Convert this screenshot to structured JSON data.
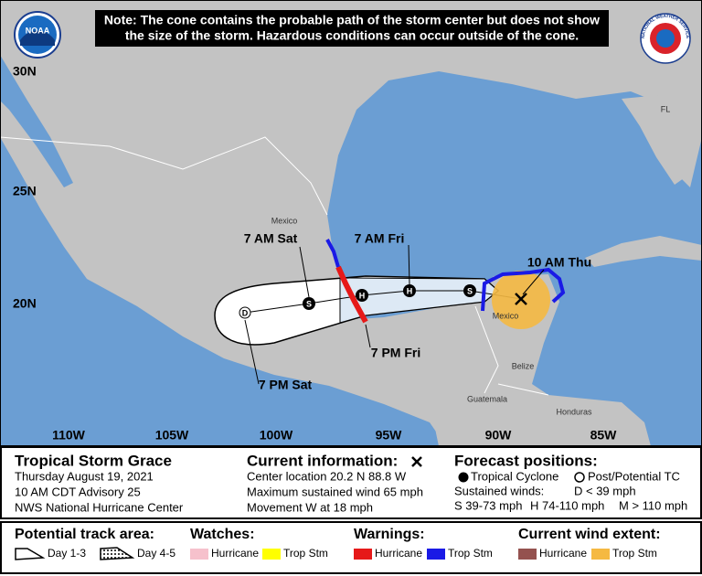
{
  "header": {
    "note": [
      "Note: The cone contains the probable path of the storm center but does not show",
      "the size of the storm. Hazardous conditions can occur outside of the cone."
    ],
    "noaa_logo": "NOAA",
    "nws_logo": "NATIONAL WEATHER SERVICE"
  },
  "map": {
    "latitudes": [
      "30N",
      "25N",
      "20N"
    ],
    "longitudes": [
      "110W",
      "105W",
      "100W",
      "95W",
      "90W",
      "85W"
    ],
    "places": [
      "Mexico",
      "Mexico",
      "FL",
      "Belize",
      "Guatemala",
      "Honduras"
    ],
    "track_labels": [
      "7 AM Sat",
      "7 AM Fri",
      "10 AM Thu",
      "7 PM Fri",
      "7 PM Sat"
    ],
    "markers": [
      "D",
      "S",
      "H",
      "H",
      "S"
    ]
  },
  "storm": {
    "name": "Tropical Storm Grace",
    "date": "Thursday August 19, 2021",
    "advisory": "10 AM CDT Advisory 25",
    "center": "NWS National Hurricane Center"
  },
  "current": {
    "heading": "Current information:",
    "lines": [
      "Center location 20.2 N 88.8 W",
      "Maximum sustained wind 65 mph",
      "Movement W at 18 mph"
    ]
  },
  "forecast": {
    "heading": "Forecast positions:",
    "tropical": "Tropical Cyclone",
    "post": "Post/Potential TC",
    "winds": "Sustained winds:",
    "d": "D < 39 mph",
    "s": "S 39-73 mph",
    "h": "H 74-110 mph",
    "m": "M > 110 mph"
  },
  "legend": {
    "track": {
      "title": "Potential track area:",
      "day13": "Day 1-3",
      "day45": "Day 4-5"
    },
    "watches": {
      "title": "Watches:",
      "hurricane": "Hurricane",
      "trop": "Trop Stm"
    },
    "warnings": {
      "title": "Warnings:",
      "hurricane": "Hurricane",
      "trop": "Trop Stm"
    },
    "wind": {
      "title": "Current wind extent:",
      "hurricane": "Hurricane",
      "trop": "Trop Stm"
    }
  }
}
